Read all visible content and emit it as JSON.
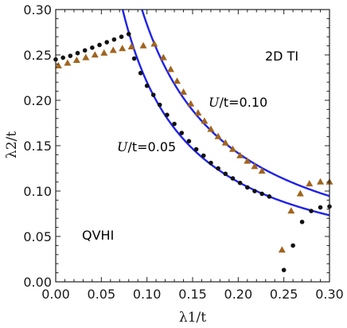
{
  "chart_data": {
    "type": "scatter",
    "xlabel": "λ1/t",
    "ylabel": "λ2/t",
    "xlim": [
      0.0,
      0.3
    ],
    "ylim": [
      0.0,
      0.3
    ],
    "x_ticks": [
      "0.00",
      "0.05",
      "0.10",
      "0.15",
      "0.20",
      "0.25",
      "0.30"
    ],
    "y_ticks": [
      "0.00",
      "0.05",
      "0.10",
      "0.15",
      "0.20",
      "0.25",
      "0.30"
    ],
    "grid": false,
    "annotations": {
      "phase_2dti": "2D TI",
      "phase_qvhi": "QVHI",
      "u010": "U/t=0.10",
      "u005": "U/t=0.05"
    },
    "colors": {
      "curve": "#1f22e8",
      "dots": "#111111",
      "triangles": "#a0641e",
      "frame": "#222222"
    },
    "series": [
      {
        "marker": "circle",
        "color": "#111111",
        "points": [
          [
            0.0,
            0.245
          ],
          [
            0.008,
            0.247
          ],
          [
            0.016,
            0.249
          ],
          [
            0.024,
            0.252
          ],
          [
            0.032,
            0.255
          ],
          [
            0.04,
            0.258
          ],
          [
            0.048,
            0.261
          ],
          [
            0.056,
            0.264
          ],
          [
            0.064,
            0.267
          ],
          [
            0.072,
            0.27
          ],
          [
            0.08,
            0.273
          ],
          [
            0.086,
            0.246
          ],
          [
            0.093,
            0.23
          ],
          [
            0.1,
            0.216
          ],
          [
            0.107,
            0.206
          ],
          [
            0.114,
            0.195
          ],
          [
            0.122,
            0.184
          ],
          [
            0.13,
            0.174
          ],
          [
            0.138,
            0.164
          ],
          [
            0.146,
            0.155
          ],
          [
            0.154,
            0.146
          ],
          [
            0.162,
            0.139
          ],
          [
            0.17,
            0.131
          ],
          [
            0.178,
            0.125
          ],
          [
            0.186,
            0.119
          ],
          [
            0.194,
            0.114
          ],
          [
            0.202,
            0.109
          ],
          [
            0.21,
            0.104
          ],
          [
            0.218,
            0.1
          ],
          [
            0.226,
            0.097
          ],
          [
            0.234,
            0.094
          ],
          [
            0.25,
            0.013
          ],
          [
            0.26,
            0.04
          ],
          [
            0.27,
            0.066
          ],
          [
            0.28,
            0.078
          ],
          [
            0.29,
            0.082
          ],
          [
            0.3,
            0.083
          ]
        ]
      },
      {
        "marker": "triangle",
        "color": "#a0641e",
        "points": [
          [
            0.003,
            0.238
          ],
          [
            0.013,
            0.241
          ],
          [
            0.023,
            0.244
          ],
          [
            0.033,
            0.247
          ],
          [
            0.043,
            0.25
          ],
          [
            0.053,
            0.252
          ],
          [
            0.063,
            0.255
          ],
          [
            0.073,
            0.257
          ],
          [
            0.083,
            0.259
          ],
          [
            0.096,
            0.26
          ],
          [
            0.108,
            0.262
          ],
          [
            0.118,
            0.247
          ],
          [
            0.126,
            0.234
          ],
          [
            0.133,
            0.221
          ],
          [
            0.14,
            0.209
          ],
          [
            0.148,
            0.196
          ],
          [
            0.156,
            0.186
          ],
          [
            0.163,
            0.177
          ],
          [
            0.17,
            0.168
          ],
          [
            0.178,
            0.16
          ],
          [
            0.186,
            0.153
          ],
          [
            0.194,
            0.146
          ],
          [
            0.202,
            0.139
          ],
          [
            0.21,
            0.133
          ],
          [
            0.218,
            0.127
          ],
          [
            0.226,
            0.122
          ],
          [
            0.248,
            0.035
          ],
          [
            0.258,
            0.078
          ],
          [
            0.268,
            0.097
          ],
          [
            0.278,
            0.108
          ],
          [
            0.29,
            0.11
          ],
          [
            0.3,
            0.11
          ]
        ]
      }
    ],
    "fit_curves": [
      {
        "label_ref": "u010",
        "k": 0.02835,
        "xmin": 0.0945,
        "xmax": 0.3
      },
      {
        "label_ref": "u005",
        "k": 0.022,
        "xmin": 0.0733,
        "xmax": 0.3
      }
    ]
  }
}
